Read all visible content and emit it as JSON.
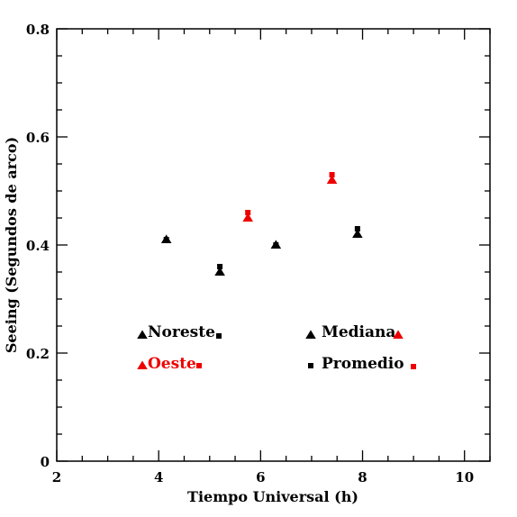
{
  "chart_data": {
    "type": "scatter",
    "title": "",
    "xlabel": "Tiempo Universal (h)",
    "ylabel": "Seeing (Segundos de arco)",
    "xlim": [
      2,
      10.5
    ],
    "ylim": [
      0,
      0.8
    ],
    "x_ticks": [
      2,
      4,
      6,
      8,
      10
    ],
    "y_ticks": [
      0,
      0.2,
      0.4,
      0.6,
      0.8
    ],
    "x_tick_labels": [
      "2",
      "4",
      "6",
      "8",
      "10"
    ],
    "y_tick_labels": [
      "0",
      "0.2",
      "0.4",
      "0.6",
      "0.8"
    ],
    "colors": {
      "noreste": "#000000",
      "oeste": "#ee0000"
    },
    "series": [
      {
        "name": "Noreste",
        "statistic": "Mediana",
        "marker": "triangle",
        "color": "#000000",
        "x": [
          4.15,
          5.2,
          6.3,
          7.9
        ],
        "y": [
          0.41,
          0.35,
          0.4,
          0.42
        ]
      },
      {
        "name": "Noreste",
        "statistic": "Promedio",
        "marker": "square",
        "color": "#000000",
        "x": [
          4.15,
          5.2,
          6.3,
          7.9
        ],
        "y": [
          0.41,
          0.36,
          0.4,
          0.43
        ]
      },
      {
        "name": "Oeste",
        "statistic": "Mediana",
        "marker": "triangle",
        "color": "#ee0000",
        "x": [
          5.75,
          7.4
        ],
        "y": [
          0.45,
          0.52
        ]
      },
      {
        "name": "Oeste",
        "statistic": "Promedio",
        "marker": "square",
        "color": "#ee0000",
        "x": [
          5.75,
          7.4
        ],
        "y": [
          0.46,
          0.53
        ]
      }
    ],
    "legend": {
      "placement": "lower-inside",
      "noreste_label": "Noreste",
      "oeste_label": "Oeste",
      "mediana_label": "Mediana",
      "promedio_label": "Promedio"
    }
  }
}
